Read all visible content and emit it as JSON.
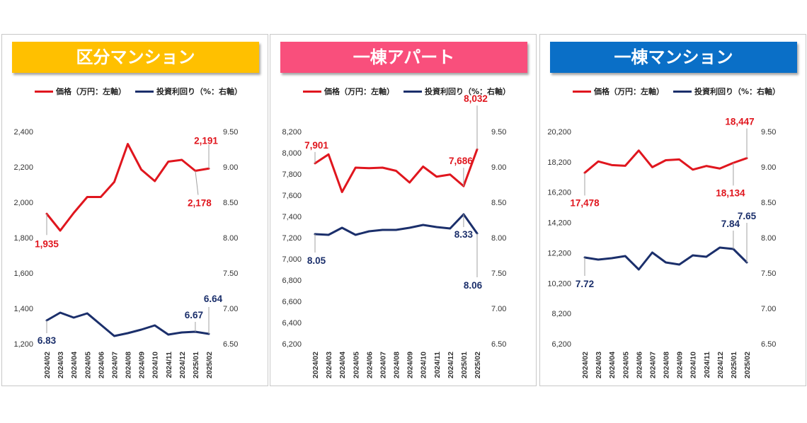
{
  "legend": {
    "price": "価格（万円：左軸）",
    "yield": "投資利回り（%：右軸）"
  },
  "colors": {
    "price": "#e0161e",
    "yield": "#1b2f6b",
    "callout": "#a0a0a0"
  },
  "panels": [
    {
      "title": "区分マンション",
      "banner_color": "#ffc000"
    },
    {
      "title": "一棟アパート",
      "banner_color": "#f94f7c"
    },
    {
      "title": "一棟マンション",
      "banner_color": "#0a6fc7"
    }
  ],
  "chart_data": [
    {
      "type": "line",
      "title": "区分マンション",
      "categories": [
        "2024/02",
        "2024/03",
        "2024/04",
        "2024/05",
        "2024/06",
        "2024/07",
        "2024/08",
        "2024/09",
        "2024/10",
        "2024/11",
        "2024/12",
        "2025/01",
        "2025/02"
      ],
      "series": [
        {
          "name": "価格（万円：左軸）",
          "axis": "left",
          "values": [
            1935,
            1840,
            1940,
            2030,
            2030,
            2115,
            2330,
            2185,
            2120,
            2230,
            2240,
            2178,
            2191
          ]
        },
        {
          "name": "投資利回り（%：右軸）",
          "axis": "right",
          "values": [
            6.83,
            6.94,
            6.87,
            6.93,
            6.77,
            6.61,
            6.65,
            6.7,
            6.76,
            6.63,
            6.66,
            6.67,
            6.64
          ]
        }
      ],
      "left_axis": {
        "min": 1200,
        "max": 2400,
        "ticks": [
          "1,200",
          "1,400",
          "1,600",
          "1,800",
          "2,000",
          "2,200",
          "2,400"
        ]
      },
      "right_axis": {
        "min": 6.5,
        "max": 9.5,
        "ticks": [
          "6.50",
          "7.00",
          "7.50",
          "8.00",
          "8.50",
          "9.00",
          "9.50"
        ]
      },
      "labels": [
        {
          "text": "1,935",
          "series": 0,
          "index": 0
        },
        {
          "text": "2,178",
          "series": 0,
          "index": 11
        },
        {
          "text": "2,191",
          "series": 0,
          "index": 12
        },
        {
          "text": "6.83",
          "series": 1,
          "index": 0
        },
        {
          "text": "6.67",
          "series": 1,
          "index": 11
        },
        {
          "text": "6.64",
          "series": 1,
          "index": 12
        }
      ]
    },
    {
      "type": "line",
      "title": "一棟アパート",
      "categories": [
        "2024/02",
        "2024/03",
        "2024/04",
        "2024/05",
        "2024/06",
        "2024/07",
        "2024/08",
        "2024/09",
        "2024/10",
        "2024/11",
        "2024/12",
        "2025/01",
        "2025/02"
      ],
      "series": [
        {
          "name": "価格（万円：左軸）",
          "axis": "left",
          "values": [
            7901,
            7985,
            7630,
            7860,
            7855,
            7860,
            7830,
            7720,
            7870,
            7775,
            7795,
            7686,
            8032
          ]
        },
        {
          "name": "投資利回り（%：右軸）",
          "axis": "right",
          "values": [
            8.05,
            8.04,
            8.14,
            8.04,
            8.09,
            8.11,
            8.11,
            8.14,
            8.18,
            8.15,
            8.13,
            8.33,
            8.06
          ]
        }
      ],
      "left_axis": {
        "min": 6200,
        "max": 8200,
        "ticks": [
          "6,200",
          "6,400",
          "6,600",
          "6,800",
          "7,000",
          "7,200",
          "7,400",
          "7,600",
          "7,800",
          "8,000",
          "8,200"
        ]
      },
      "right_axis": {
        "min": 6.5,
        "max": 9.5,
        "ticks": [
          "6.50",
          "7.00",
          "7.50",
          "8.00",
          "8.50",
          "9.00",
          "9.50"
        ]
      },
      "labels": [
        {
          "text": "7,901",
          "series": 0,
          "index": 0
        },
        {
          "text": "7,686",
          "series": 0,
          "index": 11
        },
        {
          "text": "8,032",
          "series": 0,
          "index": 12
        },
        {
          "text": "8.05",
          "series": 1,
          "index": 0
        },
        {
          "text": "8.33",
          "series": 1,
          "index": 11
        },
        {
          "text": "8.06",
          "series": 1,
          "index": 12
        }
      ]
    },
    {
      "type": "line",
      "title": "一棟マンション",
      "categories": [
        "2024/02",
        "2024/03",
        "2024/04",
        "2024/05",
        "2024/06",
        "2024/07",
        "2024/08",
        "2024/09",
        "2024/10",
        "2024/11",
        "2024/12",
        "2025/01",
        "2025/02"
      ],
      "series": [
        {
          "name": "価格（万円：左軸）",
          "axis": "left",
          "values": [
            17478,
            18230,
            17990,
            17940,
            18950,
            17850,
            18310,
            18360,
            17690,
            17930,
            17760,
            18134,
            18447
          ]
        },
        {
          "name": "投資利回り（%：右軸）",
          "axis": "right",
          "values": [
            7.72,
            7.69,
            7.71,
            7.74,
            7.55,
            7.79,
            7.65,
            7.62,
            7.75,
            7.73,
            7.86,
            7.84,
            7.65
          ]
        }
      ],
      "left_axis": {
        "min": 6200,
        "max": 20200,
        "ticks": [
          "6,200",
          "8,200",
          "10,200",
          "12,200",
          "14,200",
          "16,200",
          "18,200",
          "20,200"
        ]
      },
      "right_axis": {
        "min": 6.5,
        "max": 9.5,
        "ticks": [
          "6.50",
          "7.00",
          "7.50",
          "8.00",
          "8.50",
          "9.00",
          "9.50"
        ]
      },
      "labels": [
        {
          "text": "17,478",
          "series": 0,
          "index": 0
        },
        {
          "text": "18,134",
          "series": 0,
          "index": 11
        },
        {
          "text": "18,447",
          "series": 0,
          "index": 12
        },
        {
          "text": "7.72",
          "series": 1,
          "index": 0
        },
        {
          "text": "7.84",
          "series": 1,
          "index": 11
        },
        {
          "text": "7.65",
          "series": 1,
          "index": 12
        }
      ]
    }
  ]
}
